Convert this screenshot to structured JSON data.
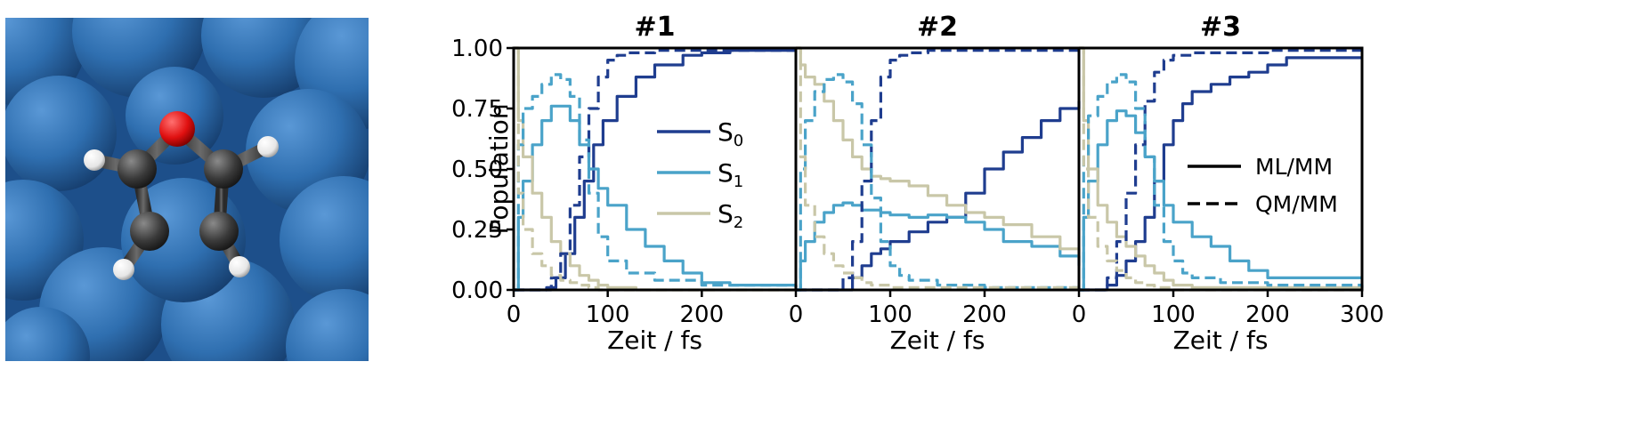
{
  "image": {
    "description_icon": "furan-molecule-in-solvent-render"
  },
  "colors": {
    "S0": "#1f3d8f",
    "S1": "#4aa3c9",
    "S2": "#c9c7a8",
    "solvent": "#2f6fb0",
    "carbon": "#3a3a3a",
    "oxygen": "#e01010",
    "hydrogen": "#f2f2f2"
  },
  "legend_states": [
    {
      "label": "S",
      "sub": "0",
      "color_key": "S0"
    },
    {
      "label": "S",
      "sub": "1",
      "color_key": "S1"
    },
    {
      "label": "S",
      "sub": "2",
      "color_key": "S2"
    }
  ],
  "legend_methods": [
    {
      "label": "ML/MM",
      "style": "solid"
    },
    {
      "label": "QM/MM",
      "style": "dashed"
    }
  ],
  "chart_data": [
    {
      "type": "line",
      "title": "#1",
      "xlabel": "Zeit / fs",
      "ylabel": "Population",
      "xlim": [
        0,
        300
      ],
      "ylim": [
        0,
        1
      ],
      "xticks": [
        "0",
        "100",
        "200"
      ],
      "yticks": [
        "0.00",
        "0.25",
        "0.50",
        "0.75",
        "1.00"
      ],
      "series": [
        {
          "name": "S0",
          "method": "ML/MM",
          "x": [
            0,
            20,
            35,
            45,
            55,
            65,
            75,
            85,
            95,
            110,
            130,
            150,
            180,
            200,
            230,
            300
          ],
          "y": [
            0,
            0,
            0.01,
            0.05,
            0.15,
            0.3,
            0.45,
            0.6,
            0.7,
            0.8,
            0.88,
            0.93,
            0.97,
            0.98,
            0.99,
            0.99
          ]
        },
        {
          "name": "S1",
          "method": "ML/MM",
          "x": [
            0,
            5,
            10,
            20,
            30,
            40,
            50,
            60,
            70,
            80,
            90,
            100,
            120,
            140,
            160,
            180,
            200,
            230,
            300
          ],
          "y": [
            0,
            0.3,
            0.45,
            0.6,
            0.7,
            0.76,
            0.76,
            0.7,
            0.6,
            0.5,
            0.42,
            0.35,
            0.25,
            0.18,
            0.12,
            0.07,
            0.03,
            0.02,
            0.01
          ]
        },
        {
          "name": "S2",
          "method": "ML/MM",
          "x": [
            0,
            5,
            10,
            20,
            30,
            40,
            50,
            60,
            70,
            80,
            90,
            100,
            130,
            300
          ],
          "y": [
            1,
            0.7,
            0.55,
            0.4,
            0.3,
            0.2,
            0.15,
            0.1,
            0.06,
            0.04,
            0.02,
            0.01,
            0,
            0
          ]
        },
        {
          "name": "S0",
          "method": "QM/MM",
          "x": [
            0,
            30,
            40,
            50,
            60,
            70,
            80,
            90,
            100,
            110,
            120,
            150,
            200,
            300
          ],
          "y": [
            0,
            0,
            0.05,
            0.15,
            0.35,
            0.55,
            0.75,
            0.88,
            0.95,
            0.97,
            0.98,
            0.99,
            0.99,
            0.99
          ]
        },
        {
          "name": "S1",
          "method": "QM/MM",
          "x": [
            0,
            5,
            10,
            20,
            30,
            40,
            50,
            60,
            70,
            80,
            90,
            100,
            120,
            150,
            200,
            300
          ],
          "y": [
            0,
            0.6,
            0.75,
            0.8,
            0.85,
            0.89,
            0.87,
            0.8,
            0.62,
            0.4,
            0.22,
            0.12,
            0.07,
            0.04,
            0.02,
            0.01
          ]
        },
        {
          "name": "S2",
          "method": "QM/MM",
          "x": [
            0,
            5,
            10,
            20,
            30,
            40,
            50,
            60,
            70,
            80,
            90,
            100,
            300
          ],
          "y": [
            1,
            0.4,
            0.25,
            0.15,
            0.1,
            0.06,
            0.04,
            0.03,
            0.02,
            0.01,
            0,
            0,
            0
          ]
        }
      ]
    },
    {
      "type": "line",
      "title": "#2",
      "xlabel": "Zeit / fs",
      "ylabel": "",
      "xlim": [
        0,
        300
      ],
      "ylim": [
        0,
        1
      ],
      "xticks": [
        "0",
        "100",
        "200"
      ],
      "yticks": [],
      "series": [
        {
          "name": "S0",
          "method": "ML/MM",
          "x": [
            0,
            40,
            60,
            70,
            80,
            90,
            100,
            120,
            140,
            160,
            180,
            200,
            220,
            240,
            260,
            280,
            300
          ],
          "y": [
            0,
            0,
            0.05,
            0.1,
            0.15,
            0.17,
            0.2,
            0.24,
            0.28,
            0.3,
            0.4,
            0.5,
            0.57,
            0.63,
            0.7,
            0.75,
            0.78
          ]
        },
        {
          "name": "S1",
          "method": "ML/MM",
          "x": [
            0,
            5,
            10,
            20,
            30,
            40,
            50,
            60,
            70,
            80,
            90,
            100,
            120,
            140,
            160,
            180,
            200,
            220,
            250,
            280,
            300
          ],
          "y": [
            0,
            0.12,
            0.2,
            0.28,
            0.32,
            0.35,
            0.36,
            0.35,
            0.33,
            0.33,
            0.32,
            0.31,
            0.3,
            0.31,
            0.3,
            0.28,
            0.25,
            0.2,
            0.18,
            0.14,
            0.1
          ]
        },
        {
          "name": "S2",
          "method": "ML/MM",
          "x": [
            0,
            5,
            10,
            20,
            30,
            40,
            50,
            60,
            70,
            80,
            90,
            100,
            120,
            140,
            160,
            180,
            200,
            220,
            250,
            280,
            300
          ],
          "y": [
            1,
            0.93,
            0.88,
            0.85,
            0.78,
            0.7,
            0.62,
            0.55,
            0.5,
            0.47,
            0.46,
            0.45,
            0.43,
            0.39,
            0.35,
            0.32,
            0.3,
            0.27,
            0.22,
            0.17,
            0.13
          ]
        },
        {
          "name": "S0",
          "method": "QM/MM",
          "x": [
            0,
            40,
            50,
            60,
            70,
            80,
            90,
            100,
            110,
            120,
            140,
            160,
            200,
            300
          ],
          "y": [
            0,
            0,
            0.05,
            0.2,
            0.45,
            0.7,
            0.88,
            0.95,
            0.97,
            0.98,
            0.99,
            0.99,
            0.99,
            0.99
          ]
        },
        {
          "name": "S1",
          "method": "QM/MM",
          "x": [
            0,
            5,
            10,
            20,
            30,
            40,
            50,
            60,
            70,
            80,
            90,
            100,
            110,
            120,
            150,
            200,
            300
          ],
          "y": [
            0,
            0.5,
            0.7,
            0.82,
            0.87,
            0.89,
            0.86,
            0.77,
            0.6,
            0.38,
            0.2,
            0.1,
            0.06,
            0.04,
            0.02,
            0.01,
            0.01
          ]
        },
        {
          "name": "S2",
          "method": "QM/MM",
          "x": [
            0,
            5,
            10,
            20,
            30,
            40,
            50,
            60,
            70,
            80,
            100,
            300
          ],
          "y": [
            1,
            0.55,
            0.35,
            0.22,
            0.15,
            0.1,
            0.07,
            0.05,
            0.03,
            0.02,
            0.01,
            0
          ]
        }
      ]
    },
    {
      "type": "line",
      "title": "#3",
      "xlabel": "Zeit / fs",
      "ylabel": "",
      "xlim": [
        0,
        300
      ],
      "ylim": [
        0,
        1
      ],
      "xticks": [
        "0",
        "100",
        "200",
        "300"
      ],
      "yticks": [],
      "series": [
        {
          "name": "S0",
          "method": "ML/MM",
          "x": [
            0,
            20,
            30,
            40,
            50,
            60,
            70,
            80,
            90,
            100,
            110,
            120,
            140,
            160,
            180,
            200,
            220,
            300
          ],
          "y": [
            0,
            0,
            0.02,
            0.06,
            0.12,
            0.2,
            0.3,
            0.45,
            0.6,
            0.7,
            0.77,
            0.82,
            0.85,
            0.88,
            0.9,
            0.93,
            0.96,
            0.96
          ]
        },
        {
          "name": "S1",
          "method": "ML/MM",
          "x": [
            0,
            5,
            10,
            20,
            30,
            40,
            50,
            60,
            70,
            80,
            90,
            100,
            120,
            140,
            160,
            180,
            200,
            220,
            300
          ],
          "y": [
            0,
            0.3,
            0.45,
            0.6,
            0.7,
            0.74,
            0.72,
            0.65,
            0.55,
            0.45,
            0.35,
            0.28,
            0.22,
            0.18,
            0.12,
            0.08,
            0.05,
            0.05,
            0.05
          ]
        },
        {
          "name": "S2",
          "method": "ML/MM",
          "x": [
            0,
            5,
            10,
            20,
            30,
            40,
            50,
            60,
            70,
            80,
            90,
            100,
            120,
            300
          ],
          "y": [
            1,
            0.7,
            0.5,
            0.35,
            0.28,
            0.22,
            0.18,
            0.14,
            0.1,
            0.07,
            0.04,
            0.02,
            0.01,
            0
          ]
        },
        {
          "name": "S0",
          "method": "QM/MM",
          "x": [
            0,
            20,
            30,
            40,
            50,
            60,
            70,
            80,
            90,
            100,
            110,
            120,
            150,
            200,
            300
          ],
          "y": [
            0,
            0,
            0.05,
            0.2,
            0.4,
            0.6,
            0.78,
            0.9,
            0.95,
            0.97,
            0.97,
            0.98,
            0.98,
            0.99,
            0.99
          ]
        },
        {
          "name": "S1",
          "method": "QM/MM",
          "x": [
            0,
            5,
            10,
            20,
            30,
            40,
            50,
            60,
            70,
            80,
            90,
            100,
            110,
            120,
            150,
            200,
            300
          ],
          "y": [
            0,
            0.55,
            0.72,
            0.8,
            0.86,
            0.89,
            0.86,
            0.75,
            0.55,
            0.35,
            0.2,
            0.12,
            0.07,
            0.05,
            0.03,
            0.02,
            0.01
          ]
        },
        {
          "name": "S2",
          "method": "QM/MM",
          "x": [
            0,
            5,
            10,
            20,
            30,
            40,
            50,
            60,
            70,
            80,
            100,
            300
          ],
          "y": [
            1,
            0.5,
            0.3,
            0.18,
            0.12,
            0.08,
            0.05,
            0.03,
            0.02,
            0.01,
            0,
            0
          ]
        }
      ]
    }
  ]
}
